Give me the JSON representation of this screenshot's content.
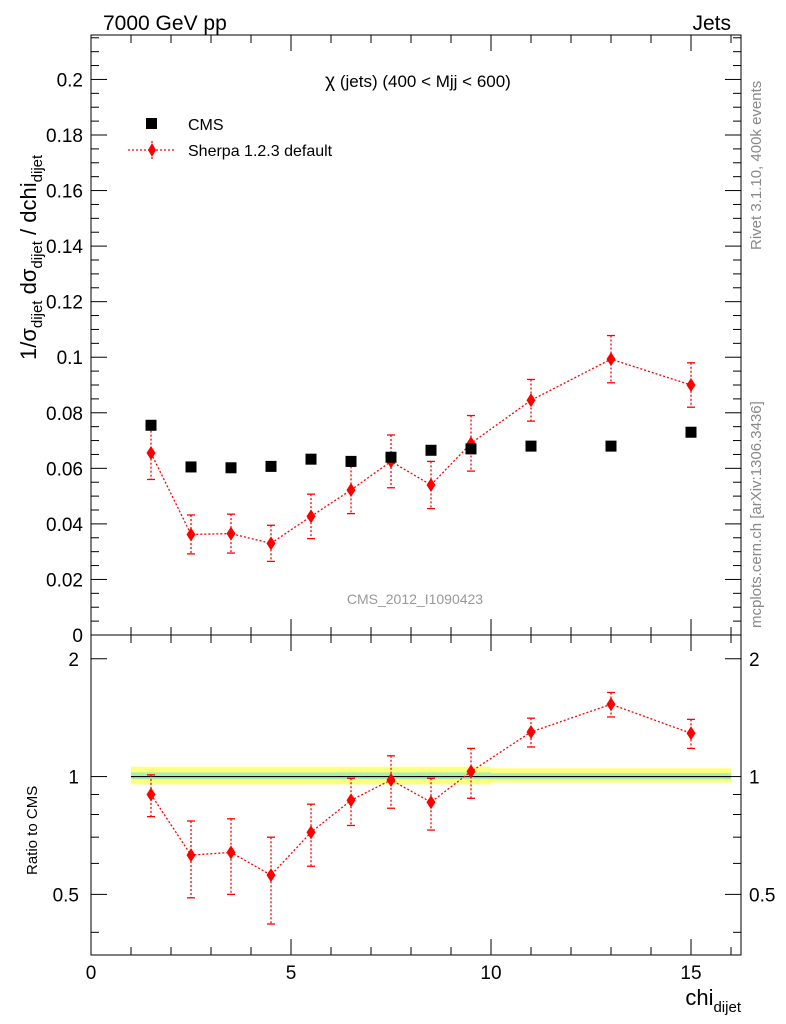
{
  "header": {
    "left": "7000 GeV pp",
    "right": "Jets"
  },
  "side_labels": {
    "rivet": "Rivet 3.1.10,  400k events",
    "mcplots": "mcplots.cern.ch [arXiv:1306.3436]"
  },
  "watermark": "CMS_2012_I1090423",
  "colors": {
    "data": "#000000",
    "mc": "#ff0000",
    "band_inner": "#a6f2a6",
    "band_outer": "#ffff7f"
  },
  "chart_data": [
    {
      "type": "scatter",
      "panel": "main",
      "title_parts": {
        "chi": "χ",
        "rest": " (jets) (400 < Mjj <  600)"
      },
      "ylabel_parts": {
        "a": "1/σ",
        "a_sub": "dijet",
        "b": " dσ",
        "b_sub": "dijet",
        "c": " / dchi",
        "c_sub": "dijet"
      },
      "xlim": [
        0,
        16.25
      ],
      "ylim": [
        0,
        0.216
      ],
      "yticks": [
        0,
        0.02,
        0.04,
        0.06,
        0.08,
        0.1,
        0.12,
        0.14,
        0.16,
        0.18,
        0.2
      ],
      "ytick_labels": [
        "0",
        "0.02",
        "0.04",
        "0.06",
        "0.08",
        "0.1",
        "0.12",
        "0.14",
        "0.16",
        "0.18",
        "0.2"
      ],
      "legend_position": "top-left",
      "series": [
        {
          "name": "CMS",
          "style": "square-markers",
          "x": [
            1.5,
            2.5,
            3.5,
            4.5,
            5.5,
            6.5,
            7.5,
            8.5,
            9.5,
            11,
            13,
            15
          ],
          "y": [
            0.0755,
            0.0605,
            0.0602,
            0.0607,
            0.0633,
            0.0625,
            0.064,
            0.0665,
            0.067,
            0.068,
            0.068,
            0.073
          ]
        },
        {
          "name": "Sherpa 1.2.3 default",
          "style": "diamond-dotted-line",
          "x": [
            1.5,
            2.5,
            3.5,
            4.5,
            5.5,
            6.5,
            7.5,
            8.5,
            9.5,
            11,
            13,
            15
          ],
          "y": [
            0.0655,
            0.0362,
            0.0365,
            0.033,
            0.0427,
            0.0522,
            0.0625,
            0.054,
            0.069,
            0.0845,
            0.0993,
            0.09
          ],
          "err": [
            0.0095,
            0.007,
            0.007,
            0.0065,
            0.008,
            0.0085,
            0.0095,
            0.0085,
            0.01,
            0.0075,
            0.0085,
            0.008
          ]
        }
      ]
    },
    {
      "type": "scatter",
      "panel": "ratio",
      "ylabel": "Ratio to CMS",
      "xlabel_parts": {
        "main": "chi",
        "sub": "dijet"
      },
      "xlim": [
        0,
        16.25
      ],
      "ylim": [
        0.35,
        2.3
      ],
      "xticks": [
        0,
        5,
        10,
        15
      ],
      "xtick_labels": [
        "0",
        "5",
        "10",
        "15"
      ],
      "yticks": [
        0.5,
        1,
        2
      ],
      "ytick_labels": [
        "0.5",
        "1",
        "2"
      ],
      "band": {
        "segments": [
          {
            "x0": 1,
            "x1": 10,
            "inner": [
              0.985,
              1.025
            ],
            "outer": [
              0.955,
              1.06
            ]
          },
          {
            "x0": 10,
            "x1": 16,
            "inner": [
              0.985,
              1.02
            ],
            "outer": [
              0.965,
              1.05
            ]
          }
        ]
      },
      "series": [
        {
          "name": "Sherpa 1.2.3 default",
          "x": [
            1.5,
            2.5,
            3.5,
            4.5,
            5.5,
            6.5,
            7.5,
            8.5,
            9.5,
            11,
            13,
            15
          ],
          "y": [
            0.9,
            0.63,
            0.64,
            0.56,
            0.72,
            0.87,
            0.98,
            0.86,
            1.03,
            1.3,
            1.53,
            1.29
          ],
          "err": [
            0.11,
            0.14,
            0.14,
            0.14,
            0.13,
            0.12,
            0.15,
            0.13,
            0.15,
            0.11,
            0.11,
            0.11
          ]
        }
      ]
    }
  ]
}
